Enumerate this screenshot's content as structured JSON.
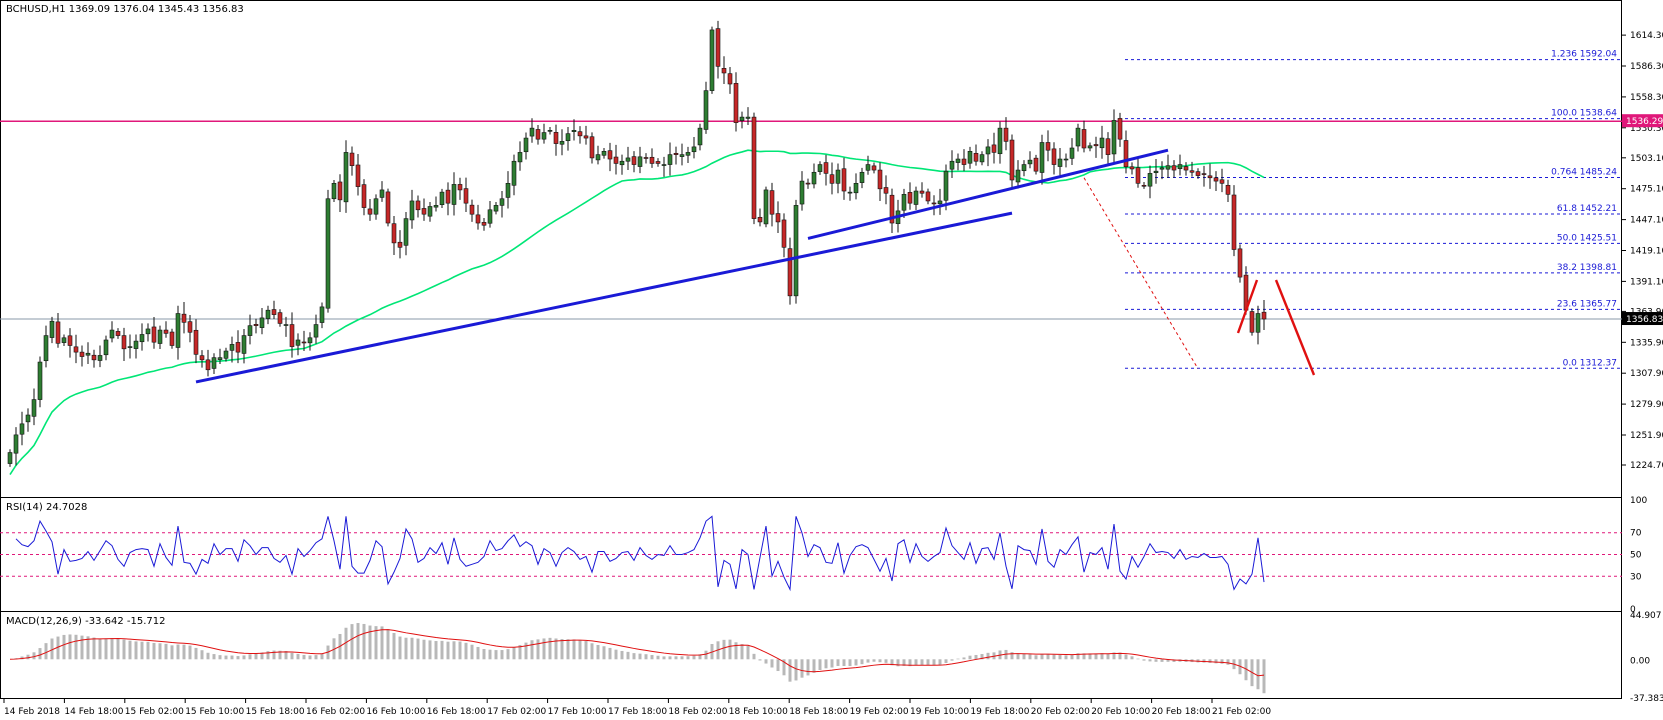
{
  "colors": {
    "background": "#ffffff",
    "frame": "#000000",
    "bull_candle": "#2e7d32",
    "bear_candle": "#c62828",
    "moving_average": "#00e676",
    "trendline": "#1a1ad6",
    "resistance_line": "#e0187a",
    "fib_line": "#1a1ad6",
    "projection_arrow": "#e01010",
    "rsi_line": "#1a1ad6",
    "macd_signal": "#e01010",
    "macd_hist": "#b8b8b8"
  },
  "header": {
    "title": "BCHUSD,H1  1369.09 1376.04 1345.43 1356.83"
  },
  "price_scale": {
    "ticks": [
      "1614.30",
      "1586.30",
      "1558.30",
      "1530.30",
      "1503.10",
      "1475.10",
      "1447.10",
      "1419.10",
      "1391.10",
      "1363.90",
      "1335.90",
      "1307.90",
      "1279.90",
      "1251.90",
      "1224.70"
    ],
    "current_price_label": "1356.83",
    "resistance_label": "1536.29"
  },
  "fib_levels": [
    {
      "label": "1.236 1592.04"
    },
    {
      "label": "100.0 1538.64"
    },
    {
      "label": "0.764 1485.24"
    },
    {
      "label": "61.8 1452.21"
    },
    {
      "label": "50.0 1425.51"
    },
    {
      "label": "38.2 1398.81"
    },
    {
      "label": "23.6 1365.77"
    },
    {
      "label": "0.0 1312.37"
    }
  ],
  "rsi_panel": {
    "title": "RSI(14) 24.7028",
    "scale": [
      "100",
      "70",
      "50",
      "30",
      "0"
    ]
  },
  "macd_panel": {
    "title": "MACD(12,26,9) -33.642 -15.712",
    "scale": [
      "44.907",
      "0.00",
      "-37.383"
    ]
  },
  "time_axis": {
    "labels": [
      "14 Feb 2018",
      "14 Feb 18:00",
      "15 Feb 02:00",
      "15 Feb 10:00",
      "15 Feb 18:00",
      "16 Feb 02:00",
      "16 Feb 10:00",
      "16 Feb 18:00",
      "17 Feb 02:00",
      "17 Feb 10:00",
      "17 Feb 18:00",
      "18 Feb 02:00",
      "18 Feb 10:00",
      "18 Feb 18:00",
      "19 Feb 02:00",
      "19 Feb 10:00",
      "19 Feb 18:00",
      "20 Feb 02:00",
      "20 Feb 10:00",
      "20 Feb 18:00",
      "21 Feb 02:00"
    ]
  },
  "chart_data": {
    "type": "candlestick",
    "title": "BCHUSD,H1",
    "symbol": "BCHUSD",
    "timeframe": "H1",
    "last_bar": {
      "open": 1369.09,
      "high": 1376.04,
      "low": 1345.43,
      "close": 1356.83
    },
    "ylim": [
      1224.7,
      1628
    ],
    "resistance": 1536.29,
    "closes": [
      1236,
      1252,
      1262,
      1270,
      1284,
      1318,
      1342,
      1355,
      1335,
      1340,
      1333,
      1327,
      1323,
      1326,
      1320,
      1324,
      1338,
      1347,
      1342,
      1330,
      1332,
      1337,
      1343,
      1348,
      1336,
      1347,
      1344,
      1333,
      1362,
      1354,
      1345,
      1325,
      1320,
      1311,
      1322,
      1322,
      1328,
      1334,
      1327,
      1342,
      1351,
      1351,
      1358,
      1365,
      1361,
      1353,
      1352,
      1332,
      1338,
      1336,
      1340,
      1352,
      1368,
      1466,
      1480,
      1465,
      1508,
      1496,
      1477,
      1458,
      1452,
      1466,
      1474,
      1444,
      1426,
      1422,
      1448,
      1464,
      1456,
      1452,
      1459,
      1460,
      1472,
      1462,
      1479,
      1474,
      1462,
      1452,
      1444,
      1442,
      1456,
      1460,
      1466,
      1480,
      1500,
      1508,
      1521,
      1530,
      1520,
      1526,
      1528,
      1516,
      1518,
      1525,
      1528,
      1523,
      1521,
      1503,
      1506,
      1509,
      1502,
      1498,
      1500,
      1503,
      1497,
      1504,
      1503,
      1498,
      1498,
      1497,
      1506,
      1506,
      1506,
      1508,
      1513,
      1530,
      1564,
      1619,
      1586,
      1580,
      1570,
      1535,
      1540,
      1540,
      1448,
      1445,
      1474,
      1452,
      1445,
      1422,
      1378,
      1460,
      1482,
      1480,
      1490,
      1497,
      1489,
      1480,
      1492,
      1473,
      1472,
      1480,
      1490,
      1497,
      1492,
      1475,
      1471,
      1444,
      1455,
      1470,
      1462,
      1473,
      1471,
      1464,
      1462,
      1464,
      1491,
      1500,
      1502,
      1497,
      1509,
      1500,
      1506,
      1513,
      1508,
      1530,
      1518,
      1483,
      1492,
      1497,
      1501,
      1491,
      1517,
      1510,
      1497,
      1502,
      1502,
      1512,
      1530,
      1512,
      1514,
      1514,
      1521,
      1506,
      1537,
      1520,
      1495,
      1493,
      1480,
      1478,
      1489,
      1491,
      1494,
      1496,
      1492,
      1497,
      1492,
      1490,
      1487,
      1488,
      1485,
      1482,
      1480,
      1470,
      1420,
      1395,
      1365,
      1345,
      1362,
      1357
    ],
    "ma_period_note": "",
    "rsi": {
      "last": 24.7028,
      "levels": [
        70,
        50,
        30
      ],
      "ylim": [
        0,
        100
      ]
    },
    "macd": {
      "params": [
        12,
        26,
        9
      ],
      "macd": -33.642,
      "signal": -15.712,
      "ylim": [
        -37.383,
        44.907
      ]
    },
    "trendlines": [
      {
        "from": {
          "bar": 31,
          "price": 1300
        },
        "to": {
          "bar": 167,
          "price": 1453
        }
      },
      {
        "from": {
          "bar": 133,
          "price": 1430
        },
        "to": {
          "bar": 193,
          "price": 1510
        }
      }
    ],
    "fibonacci": [
      {
        "level": 1.236,
        "price": 1592.04
      },
      {
        "level": 1.0,
        "price": 1538.64
      },
      {
        "level": 0.764,
        "price": 1485.24
      },
      {
        "level": 0.618,
        "price": 1452.21
      },
      {
        "level": 0.5,
        "price": 1425.51
      },
      {
        "level": 0.382,
        "price": 1398.81
      },
      {
        "level": 0.236,
        "price": 1365.77
      },
      {
        "level": 0.0,
        "price": 1312.37
      }
    ]
  }
}
